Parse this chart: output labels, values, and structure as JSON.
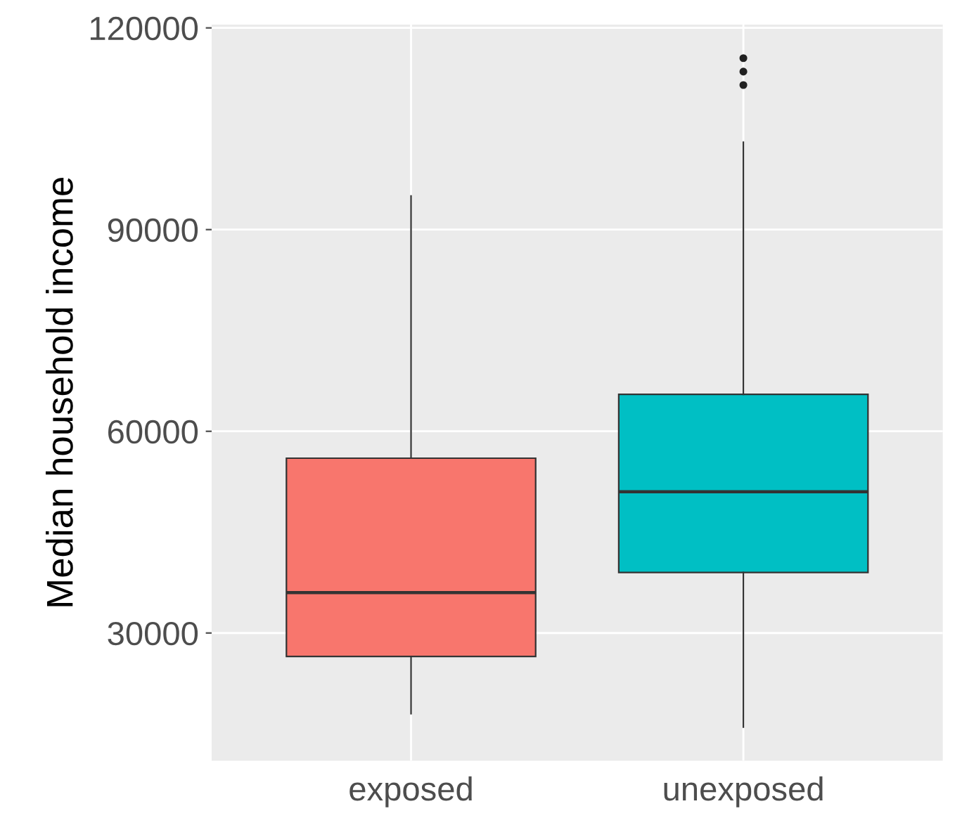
{
  "chart_data": {
    "type": "box",
    "ylabel": "Median household income",
    "categories": [
      "exposed",
      "unexposed"
    ],
    "colors": [
      "#f8766d",
      "#00bfc4"
    ],
    "boxes": [
      {
        "low": 18000,
        "q1": 26500,
        "median": 36000,
        "q3": 56000,
        "high": 95000
      },
      {
        "low": 16000,
        "q1": 39000,
        "median": 51000,
        "q3": 65500,
        "high": 103000,
        "outliers": [
          111500,
          113500,
          115500
        ]
      }
    ],
    "ylim": [
      11000,
      120500
    ],
    "yticks": [
      30000,
      60000,
      90000,
      120000
    ],
    "grid": true
  }
}
